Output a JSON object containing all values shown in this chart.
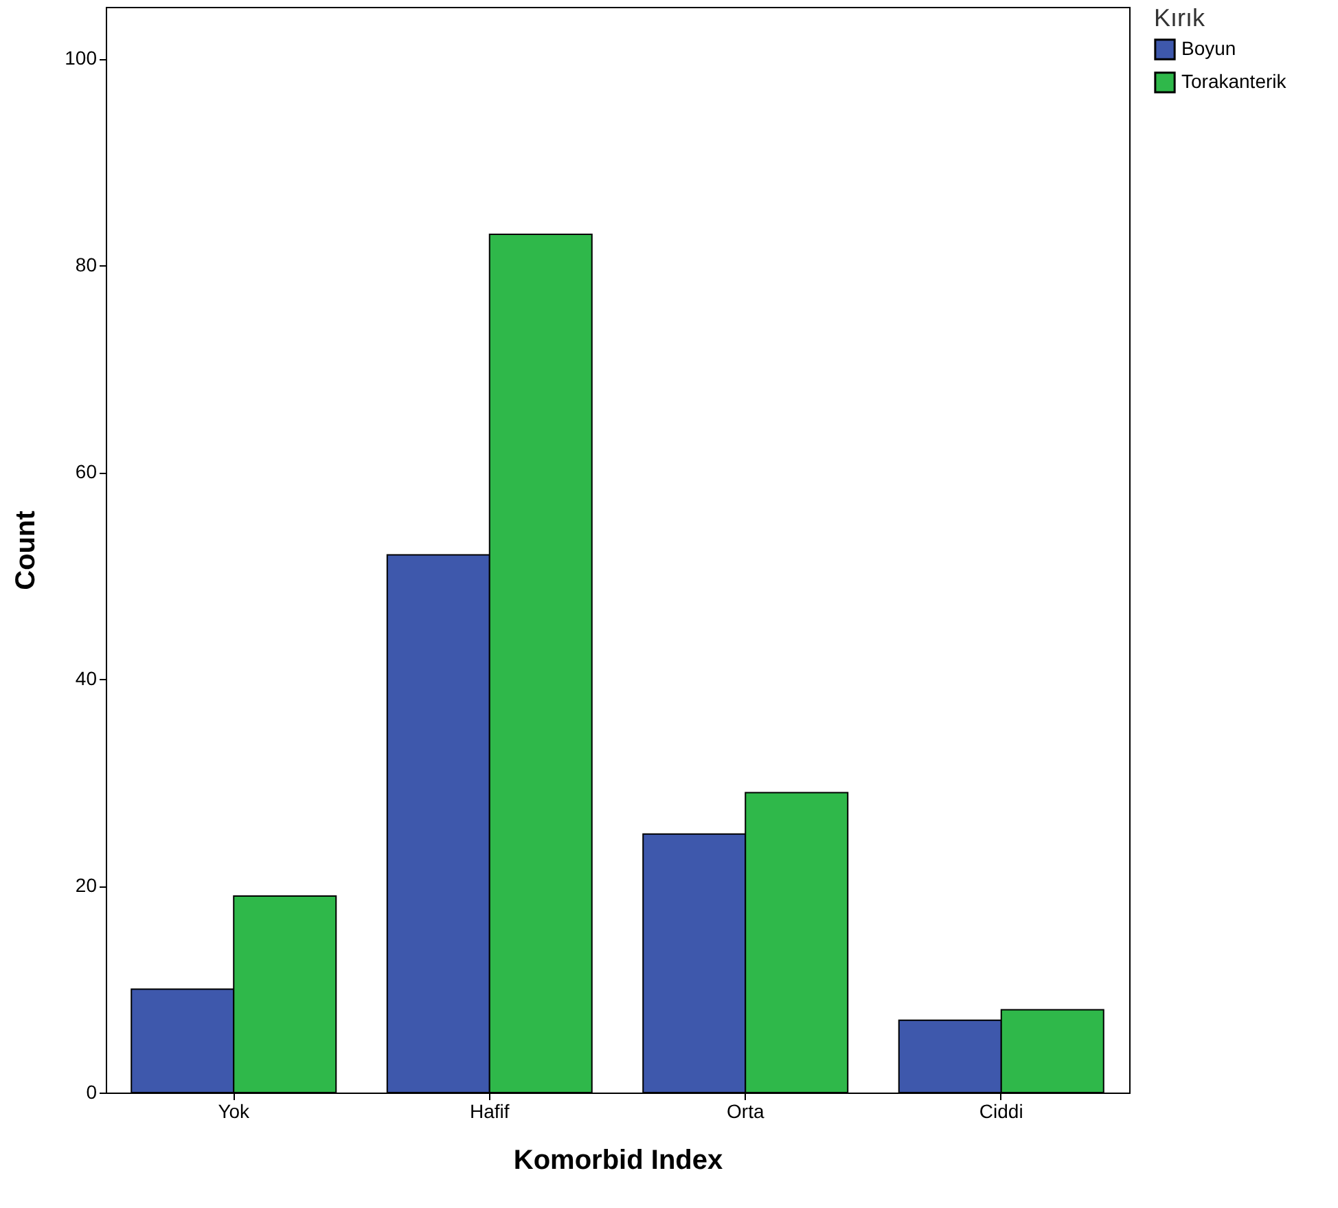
{
  "chart_data": {
    "type": "bar",
    "xlabel": "Komorbid  Index",
    "ylabel": "Count",
    "legend_title": "Kırık",
    "categories": [
      "Yok",
      "Hafif",
      "Orta",
      "Ciddi"
    ],
    "series": [
      {
        "name": "Boyun",
        "color": "#3e58ac",
        "values": [
          10,
          52,
          25,
          7
        ]
      },
      {
        "name": "Torakanterik",
        "color": "#2fb84a",
        "values": [
          19,
          83,
          29,
          8
        ]
      }
    ],
    "ylim": [
      0,
      105
    ],
    "yticks": [
      0,
      20,
      40,
      60,
      80,
      100
    ],
    "grid": false,
    "legend": "top right"
  }
}
